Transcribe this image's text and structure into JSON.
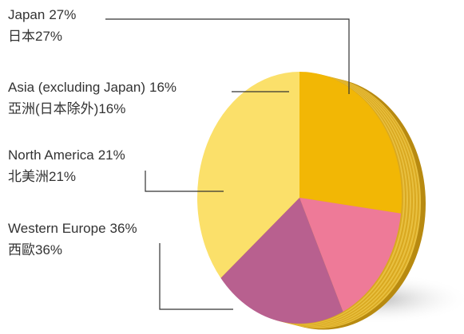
{
  "chart_data": {
    "type": "pie",
    "categories": [
      "Japan",
      "Asia (excluding Japan)",
      "North America",
      "Western Europe"
    ],
    "categories_zh": [
      "日本",
      "亞洲(日本除外)",
      "北美洲",
      "西歐"
    ],
    "values": [
      27,
      16,
      21,
      36
    ],
    "value_labels": [
      "27%",
      "16%",
      "21%",
      "36%"
    ],
    "colors": [
      "#f2b705",
      "#ee7a98",
      "#b8608f",
      "#fbe06a"
    ]
  }
}
